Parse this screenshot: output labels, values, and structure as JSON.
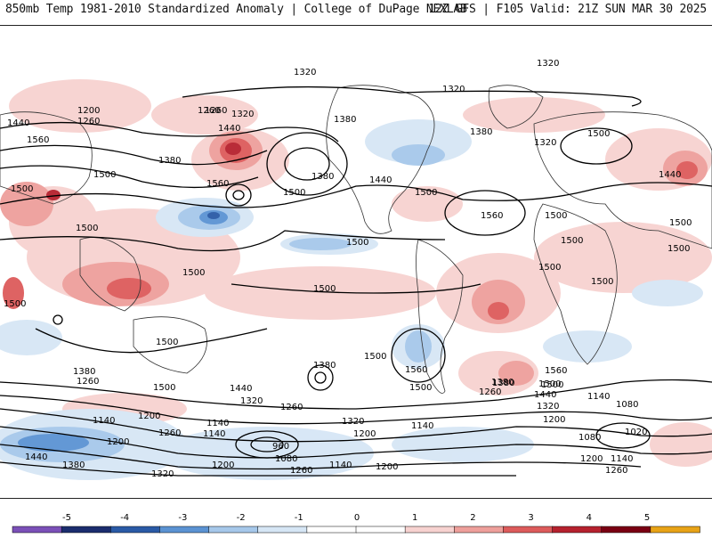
{
  "header": {
    "title": "850mb Temp 1981-2010 Standardized Anomaly | College of DuPage NEXLAB",
    "run_info": "12Z GFS | F105 Valid: 21Z SUN MAR 30 2025"
  },
  "colors": {
    "pos_1": "#f7d2d0",
    "pos_2": "#ee9f9b",
    "pos_3": "#dd5b5b",
    "pos_4": "#b6212e",
    "pos_5": "#7a0012",
    "neg_1": "#d6e6f5",
    "neg_2": "#a6c8ea",
    "neg_3": "#5b93d3",
    "neg_4": "#2a5aa6",
    "neg_5": "#1b2d6e"
  },
  "contour_labels": [
    "1320",
    "1320",
    "1320",
    "1440",
    "1260",
    "1260",
    "1320",
    "1380",
    "1440",
    "1200",
    "1260",
    "1560",
    "1380",
    "1380",
    "1320",
    "1500",
    "1560",
    "1380",
    "1440",
    "1500",
    "1500",
    "1500",
    "1500",
    "1500",
    "1560",
    "1500",
    "1500",
    "1500",
    "1440",
    "1500",
    "1500",
    "1500",
    "1500",
    "1500",
    "1500",
    "1500",
    "1500",
    "1500",
    "1500",
    "1500",
    "1560",
    "1560",
    "1500",
    "1380",
    "1260",
    "1380",
    "1500",
    "1440",
    "1320",
    "1440",
    "1260",
    "1380",
    "1260",
    "1320",
    "1200",
    "1140",
    "1080",
    "1140",
    "1320",
    "1200",
    "1260",
    "1140",
    "1200",
    "1080",
    "1020",
    "960",
    "1080",
    "1200",
    "1140",
    "1200",
    "1260",
    "1140",
    "1440",
    "1380",
    "1320",
    "1200",
    "1140",
    "1260",
    "1200",
    "1140",
    "1380"
  ],
  "colorbar": {
    "tick_labels": [
      "-5",
      "-4",
      "-3",
      "-2",
      "-1",
      "0",
      "1",
      "2",
      "3",
      "4",
      "5"
    ],
    "segment_colors": [
      "#7b50b8",
      "#1b2d6e",
      "#2a5aa6",
      "#5b93d3",
      "#a6c8ea",
      "#d6e6f5",
      "#ffffff",
      "#ffffff",
      "#f7d2d0",
      "#ee9f9b",
      "#dd5b5b",
      "#b6212e",
      "#7a0012",
      "#e8a317"
    ]
  }
}
